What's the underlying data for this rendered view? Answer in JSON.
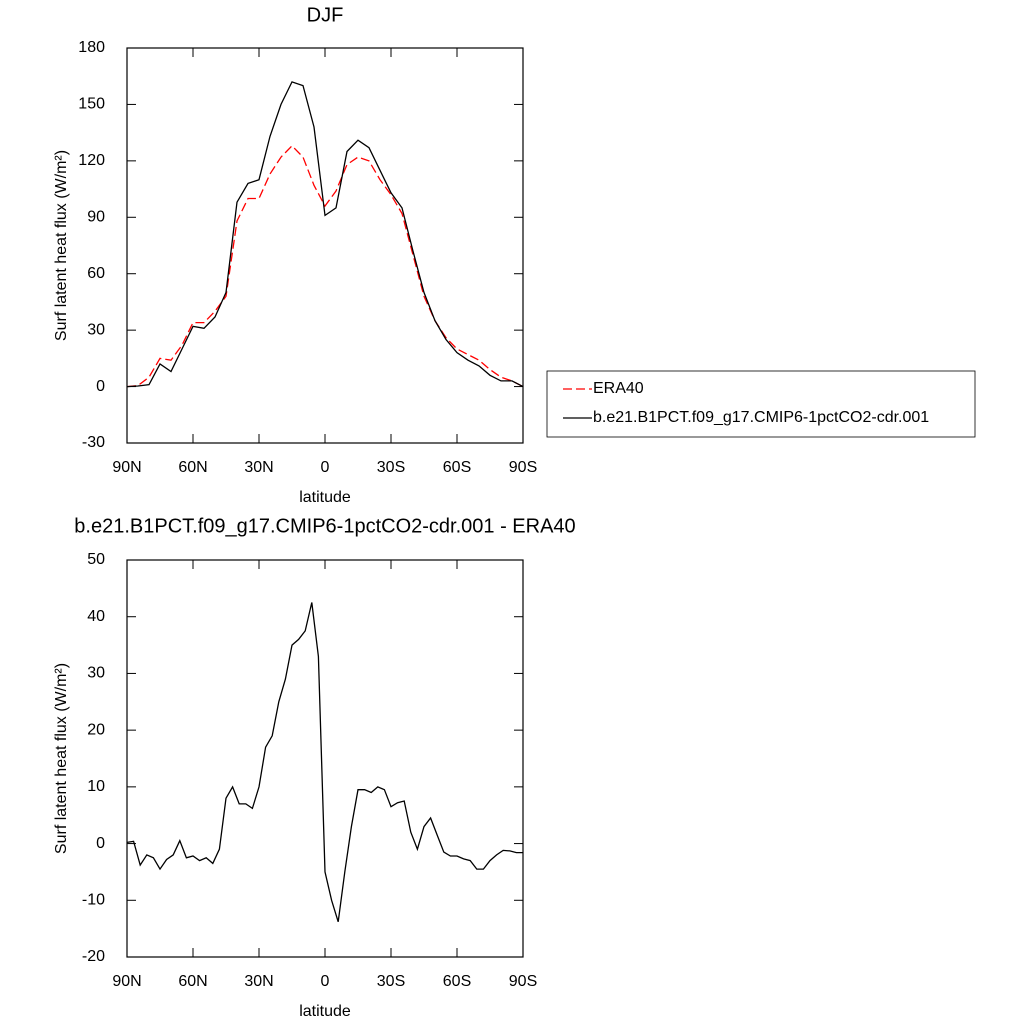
{
  "chart_data": [
    {
      "type": "line",
      "title": "DJF",
      "xlabel": "latitude",
      "ylabel": "Surf latent heat flux (W/m²)",
      "x": [
        90,
        85,
        80,
        75,
        70,
        65,
        60,
        55,
        50,
        45,
        40,
        35,
        30,
        25,
        20,
        15,
        10,
        5,
        0,
        -5,
        -10,
        -15,
        -20,
        -25,
        -30,
        -35,
        -40,
        -45,
        -50,
        -55,
        -60,
        -65,
        -70,
        -75,
        -80,
        -85,
        -90
      ],
      "series": [
        {
          "name": "ERA40",
          "color": "#ff0000",
          "dash": true,
          "values": [
            0,
            0.5,
            5,
            15,
            14,
            22,
            34,
            34,
            40,
            48,
            88,
            100,
            100,
            113,
            122,
            128,
            122,
            107,
            96,
            104,
            118,
            122,
            120,
            110,
            102,
            92,
            70,
            48,
            35,
            26,
            20,
            17,
            14,
            9,
            5,
            3,
            0
          ]
        },
        {
          "name": "b.e21.B1PCT.f09_g17.CMIP6-1pctCO2-cdr.001",
          "color": "#000000",
          "dash": false,
          "values": [
            0,
            0.3,
            1,
            12,
            8,
            20,
            32,
            31,
            37,
            50,
            98,
            108,
            110,
            133,
            150,
            162,
            160,
            138,
            91,
            95,
            125,
            131,
            127,
            115,
            103,
            95,
            72,
            50,
            35,
            25,
            18,
            14,
            11,
            6,
            3,
            3,
            0
          ]
        }
      ],
      "xlim": [
        90,
        -90
      ],
      "xticks": [
        {
          "value": 90,
          "label": "90N"
        },
        {
          "value": 60,
          "label": "60N"
        },
        {
          "value": 30,
          "label": "30N"
        },
        0,
        {
          "value": -30,
          "label": "30S"
        },
        {
          "value": -60,
          "label": "60S"
        },
        {
          "value": -90,
          "label": "90S"
        }
      ],
      "ylim": [
        -30,
        180
      ],
      "yticks": [
        -30,
        0,
        30,
        60,
        90,
        120,
        150,
        180
      ],
      "legend": "right"
    },
    {
      "type": "line",
      "title": "b.e21.B1PCT.f09_g17.CMIP6-1pctCO2-cdr.001 - ERA40",
      "xlabel": "latitude",
      "ylabel": "Surf latent heat flux (W/m²)",
      "x": [
        90,
        87,
        84,
        81,
        78,
        75,
        72,
        69,
        66,
        63,
        60,
        57,
        54,
        51,
        48,
        45,
        42,
        39,
        36,
        33,
        30,
        27,
        24,
        21,
        18,
        15,
        12,
        9,
        6,
        3,
        0,
        -3,
        -6,
        -9,
        -12,
        -15,
        -18,
        -21,
        -24,
        -27,
        -30,
        -33,
        -36,
        -39,
        -42,
        -45,
        -48,
        -51,
        -54,
        -57,
        -60,
        -63,
        -66,
        -69,
        -72,
        -75,
        -78,
        -81,
        -84,
        -87,
        -90
      ],
      "series": [
        {
          "color": "#000000",
          "dash": false,
          "values": [
            0.2,
            0.4,
            -3.8,
            -2,
            -2.5,
            -4.5,
            -2.8,
            -2,
            0.5,
            -2.5,
            -2.2,
            -3,
            -2.5,
            -3.5,
            -1,
            8,
            10,
            7,
            7,
            6.2,
            10,
            17,
            19,
            25,
            29,
            35,
            36,
            37.5,
            42.5,
            33,
            -5,
            -10,
            -13.8,
            -5,
            3,
            9.5,
            9.5,
            9,
            10,
            9.5,
            6.5,
            7.2,
            7.5,
            2,
            -1,
            3,
            4.5,
            1.5,
            -1.5,
            -2.2,
            -2.2,
            -2.7,
            -3,
            -4.5,
            -4.5,
            -3,
            -2,
            -1.2,
            -1.3,
            -1.6,
            -1.6
          ]
        }
      ],
      "xlim": [
        90,
        -90
      ],
      "xticks": [
        {
          "value": 90,
          "label": "90N"
        },
        {
          "value": 60,
          "label": "60N"
        },
        {
          "value": 30,
          "label": "30N"
        },
        0,
        {
          "value": -30,
          "label": "30S"
        },
        {
          "value": -60,
          "label": "60S"
        },
        {
          "value": -90,
          "label": "90S"
        }
      ],
      "ylim": [
        -20,
        50
      ],
      "yticks": [
        -20,
        -10,
        0,
        10,
        20,
        30,
        40,
        50
      ]
    }
  ]
}
